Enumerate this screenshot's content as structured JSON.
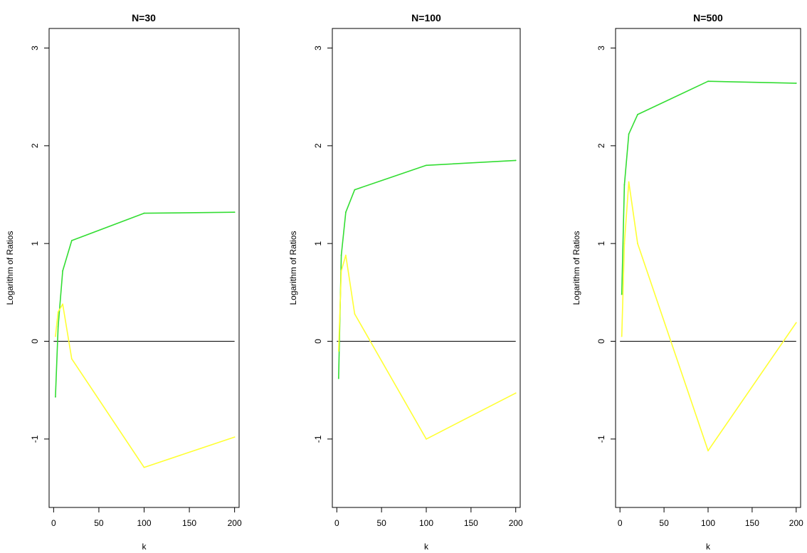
{
  "chart_data": [
    {
      "type": "line",
      "title": "N=30",
      "xlabel": "k",
      "ylabel": "Logarithm of Ratios",
      "xlim": [
        -5,
        205
      ],
      "ylim": [
        -1.7,
        3.2
      ],
      "xticks": [
        0,
        50,
        100,
        150,
        200
      ],
      "xtick_labels": [
        "0",
        "50",
        "100",
        "150",
        "200"
      ],
      "yticks": [
        -1,
        0,
        1,
        2,
        3
      ],
      "ytick_labels": [
        "-1",
        "0",
        "1",
        "2",
        "3"
      ],
      "grid": false,
      "hline": 0,
      "series": [
        {
          "color": "#33dd33",
          "x": [
            2,
            5,
            10,
            20,
            100,
            200
          ],
          "y": [
            -0.57,
            0.15,
            0.72,
            1.03,
            1.31,
            1.32
          ]
        },
        {
          "color": "#ffff33",
          "x": [
            2,
            5,
            10,
            20,
            100,
            200
          ],
          "y": [
            0.05,
            0.3,
            0.38,
            -0.18,
            -1.29,
            -0.98
          ]
        }
      ]
    },
    {
      "type": "line",
      "title": "N=100",
      "xlabel": "k",
      "ylabel": "Logarithm of Ratios",
      "xlim": [
        -5,
        205
      ],
      "ylim": [
        -1.7,
        3.2
      ],
      "xticks": [
        0,
        50,
        100,
        150,
        200
      ],
      "xtick_labels": [
        "0",
        "50",
        "100",
        "150",
        "200"
      ],
      "yticks": [
        -1,
        0,
        1,
        2,
        3
      ],
      "ytick_labels": [
        "-1",
        "0",
        "1",
        "2",
        "3"
      ],
      "grid": false,
      "hline": 0,
      "series": [
        {
          "color": "#33dd33",
          "x": [
            2,
            5,
            10,
            20,
            100,
            200
          ],
          "y": [
            -0.38,
            0.88,
            1.32,
            1.55,
            1.8,
            1.85
          ]
        },
        {
          "color": "#ffff33",
          "x": [
            2,
            5,
            10,
            20,
            100,
            200
          ],
          "y": [
            -0.1,
            0.72,
            0.88,
            0.28,
            -1.0,
            -0.53
          ]
        }
      ]
    },
    {
      "type": "line",
      "title": "N=500",
      "xlabel": "k",
      "ylabel": "Logarithm of Ratios",
      "xlim": [
        -5,
        205
      ],
      "ylim": [
        -1.7,
        3.2
      ],
      "xticks": [
        0,
        50,
        100,
        150,
        200
      ],
      "xtick_labels": [
        "0",
        "50",
        "100",
        "150",
        "200"
      ],
      "yticks": [
        -1,
        0,
        1,
        2,
        3
      ],
      "ytick_labels": [
        "-1",
        "0",
        "1",
        "2",
        "3"
      ],
      "grid": false,
      "hline": 0,
      "series": [
        {
          "color": "#33dd33",
          "x": [
            2,
            5,
            10,
            20,
            100,
            200
          ],
          "y": [
            0.48,
            1.6,
            2.12,
            2.32,
            2.66,
            2.64
          ]
        },
        {
          "color": "#ffff33",
          "x": [
            2,
            5,
            10,
            20,
            100,
            200
          ],
          "y": [
            0.05,
            1.0,
            1.63,
            1.0,
            -1.12,
            0.19
          ]
        }
      ]
    }
  ]
}
